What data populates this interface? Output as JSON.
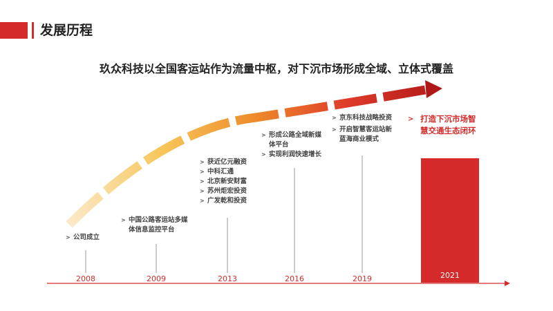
{
  "header": {
    "title": "发展历程"
  },
  "subtitle": "玖众科技以全国客运站作为流量中枢，对下沉市场形成全域、立体式覆盖",
  "colors": {
    "accent": "#d42a2a",
    "arrow_start": "#f6c65a",
    "arrow_end": "#b01818"
  },
  "timeline": [
    {
      "year": "2008",
      "items": [
        "公司成立"
      ]
    },
    {
      "year": "2009",
      "items": [
        "中国公路客运站多媒\n体信息监控平台"
      ]
    },
    {
      "year": "2013",
      "items": [
        "获近亿元融资",
        "中科汇通",
        "北京新安财富",
        "苏州炬宏投资",
        "广发乾和投资"
      ]
    },
    {
      "year": "2016",
      "items": [
        "形成公路全域新媒\n体平台",
        "实现利润快速增长"
      ]
    },
    {
      "year": "2019",
      "items": [
        "京东科技战略投资",
        "开启智慧客运站新\n蓝海商业模式"
      ]
    }
  ],
  "final": {
    "year": "2021",
    "text": "打造下沉市场智\n慧交通生态闭环"
  }
}
